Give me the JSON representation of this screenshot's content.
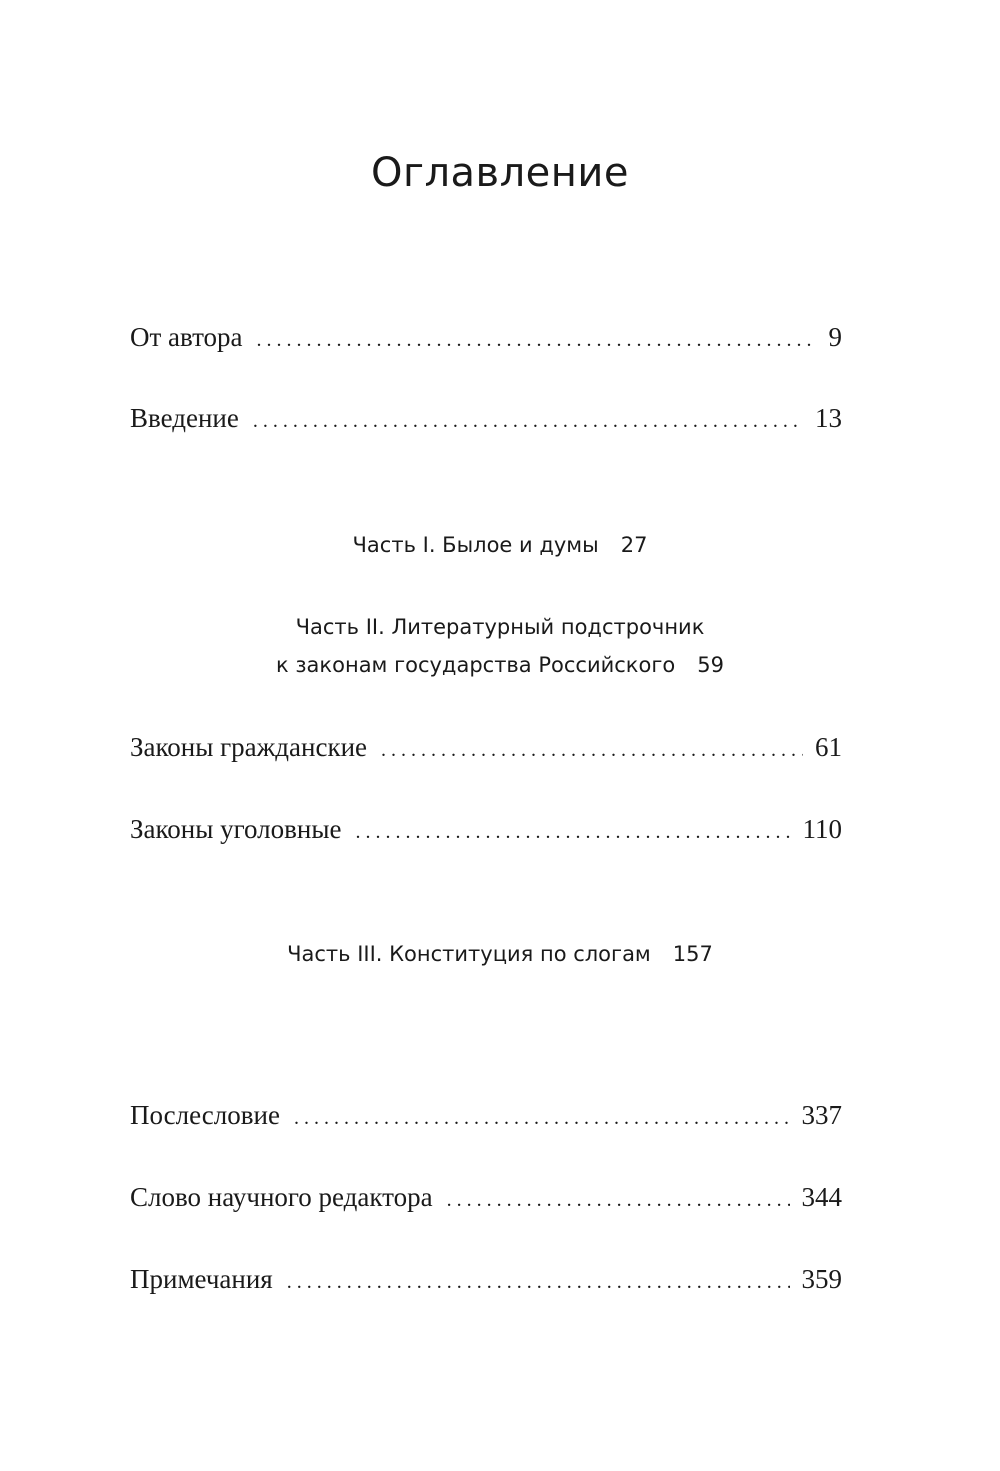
{
  "title": "Оглавление",
  "entries_top": [
    {
      "label": "От автора",
      "page": "9"
    },
    {
      "label": "Введение",
      "page": "13"
    }
  ],
  "part1": {
    "label": "Часть I. Былое и думы",
    "page": "27"
  },
  "part2": {
    "line1": "Часть II. Литературный подстрочник",
    "line2": "к законам государства Российского",
    "page": "59"
  },
  "entries_part2": [
    {
      "label": "Законы гражданские",
      "page": "61"
    },
    {
      "label": "Законы уголовные",
      "page": "110"
    }
  ],
  "part3": {
    "label": "Часть III. Конституция по слогам",
    "page": "157"
  },
  "entries_end": [
    {
      "label": "Послесловие",
      "page": "337"
    },
    {
      "label": "Слово научного редактора",
      "page": "344"
    },
    {
      "label": "Примечания",
      "page": "359"
    }
  ]
}
